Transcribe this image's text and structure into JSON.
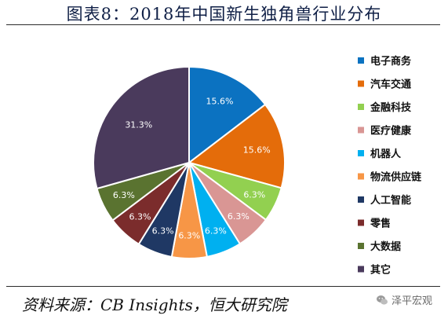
{
  "title": "图表8：2018年中国新生独角兽行业分布",
  "source": "资料来源：CB Insights，恒大研究院",
  "watermark": "泽平宏观",
  "chart_data": {
    "type": "pie",
    "categories": [
      "电子商务",
      "汽车交通",
      "金融科技",
      "医疗健康",
      "机器人",
      "物流供应链",
      "人工智能",
      "零售",
      "大数据",
      "其它"
    ],
    "values": [
      15.6,
      15.6,
      6.3,
      6.3,
      6.3,
      6.3,
      6.3,
      6.3,
      6.3,
      31.3
    ],
    "labels": [
      "15.6%",
      "15.6%",
      "6.3%",
      "6.3%",
      "6.3%",
      "6.3%",
      "6.3%",
      "6.3%",
      "6.3%",
      "31.3%"
    ],
    "colors": [
      "#0b72c1",
      "#e46c0a",
      "#92d050",
      "#d99694",
      "#00b0f0",
      "#f79646",
      "#1f3864",
      "#7b2c2c",
      "#5a7330",
      "#4a3a5c"
    ],
    "legend_position": "right",
    "start": "12 o'clock, clockwise"
  }
}
